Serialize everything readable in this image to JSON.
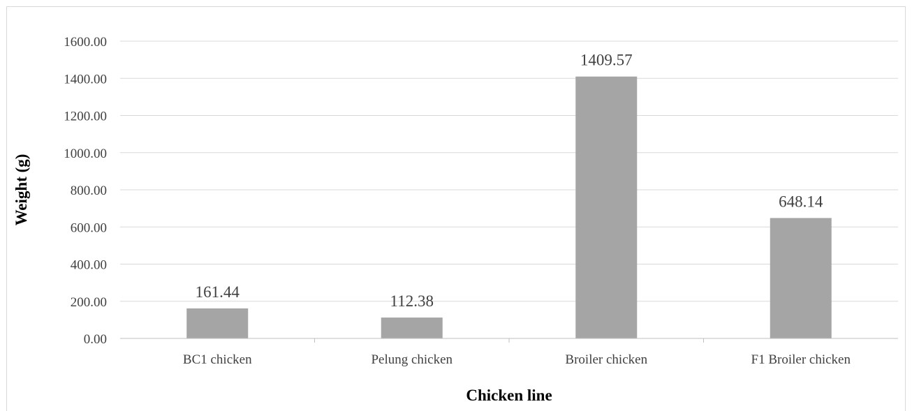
{
  "chart_data": {
    "type": "bar",
    "title": "",
    "xlabel": "Chicken line",
    "ylabel": "Weight (g)",
    "categories": [
      "BC1 chicken",
      "Pelung chicken",
      "Broiler chicken",
      "F1 Broiler chicken"
    ],
    "values": [
      161.44,
      112.38,
      1409.57,
      648.14
    ],
    "value_labels": [
      "161.44",
      "112.38",
      "1409.57",
      "648.14"
    ],
    "ylim": [
      0,
      1600
    ],
    "yticks": [
      "0.00",
      "200.00",
      "400.00",
      "600.00",
      "800.00",
      "1000.00",
      "1200.00",
      "1400.00",
      "1600.00"
    ],
    "grid": true,
    "legend": "none",
    "bar_color": "#a5a5a5"
  }
}
